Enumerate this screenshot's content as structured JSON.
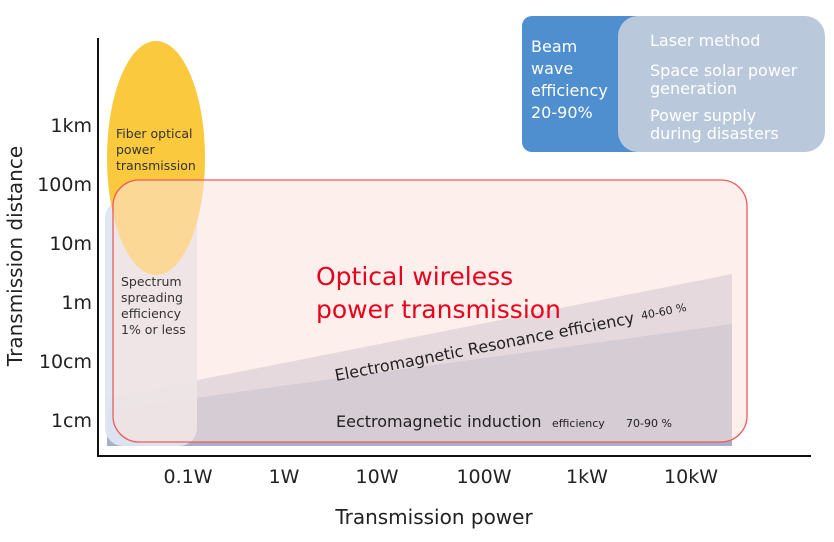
{
  "axes": {
    "y_label": "Transmission distance",
    "x_label": "Transmission power",
    "y_ticks": [
      "1km",
      "100m",
      "10m",
      "1m",
      "10cm",
      "1cm"
    ],
    "x_ticks": [
      "0.1W",
      "1W",
      "10W",
      "100W",
      "1kW",
      "10kW"
    ]
  },
  "fiber": {
    "lines": [
      "Fiber optical",
      "power",
      "transmission"
    ]
  },
  "spectrum": {
    "lines": [
      "Spectrum",
      "spreading",
      "efficiency",
      "1% or less"
    ]
  },
  "optical_wireless": {
    "lines": [
      "Optical wireless",
      "power transmission"
    ]
  },
  "resonance": {
    "label": "Electromagnetic Resonance efficiency",
    "efficiency": "40-60 %"
  },
  "induction": {
    "label": "Eectromagnetic induction",
    "efficiency_word": "efficiency",
    "efficiency": "70-90 %"
  },
  "beam": {
    "lines": [
      "Beam",
      "wave",
      "efficiency",
      "20-90%"
    ]
  },
  "laser": {
    "items": [
      [
        "Laser method"
      ],
      [
        "Space solar power",
        "generation"
      ],
      [
        "Power supply",
        "during disasters"
      ]
    ]
  },
  "colors": {
    "beam_blue": "#4f8fd0",
    "laser_gray": "#b9c8da",
    "fiber_yellow": "#fbc93e",
    "red_accent": "#e8001c",
    "induction_navy": "#1f4aa0"
  }
}
